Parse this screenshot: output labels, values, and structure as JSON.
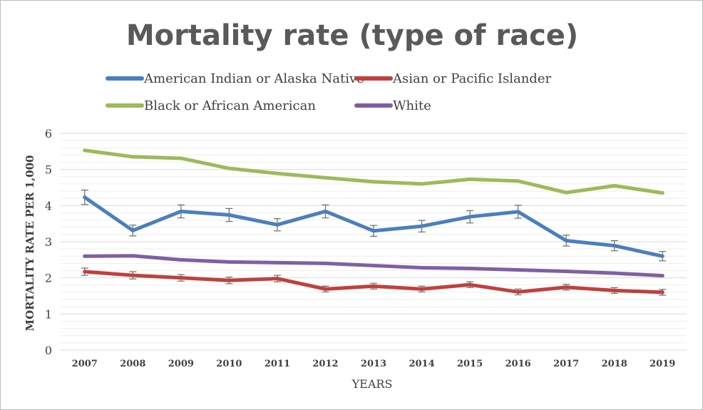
{
  "chart_data": {
    "type": "line",
    "title": "Mortality rate (type of race)",
    "xlabel": "YEARS",
    "ylabel": "MORTALITY RATE PER 1,000",
    "ylim": [
      0,
      6
    ],
    "yticks": [
      "0",
      "1",
      "2",
      "3",
      "4",
      "5",
      "6"
    ],
    "grid": true,
    "legend_position": "top",
    "categories": [
      "2007",
      "2008",
      "2009",
      "2010",
      "2011",
      "2012",
      "2013",
      "2014",
      "2015",
      "2016",
      "2017",
      "2018",
      "2019"
    ],
    "series": [
      {
        "name": "American Indian or Alaska Native",
        "color": "#4a7fc0",
        "values": [
          4.23,
          3.31,
          3.84,
          3.74,
          3.47,
          3.84,
          3.3,
          3.43,
          3.69,
          3.83,
          3.03,
          2.89,
          2.6
        ],
        "error": [
          0.2,
          0.15,
          0.18,
          0.18,
          0.17,
          0.18,
          0.15,
          0.16,
          0.17,
          0.18,
          0.15,
          0.14,
          0.13
        ]
      },
      {
        "name": "Asian or Pacific Islander",
        "color": "#c0403d",
        "values": [
          2.17,
          2.07,
          2.0,
          1.93,
          1.98,
          1.69,
          1.77,
          1.69,
          1.81,
          1.61,
          1.74,
          1.65,
          1.6
        ],
        "error": [
          0.1,
          0.1,
          0.09,
          0.09,
          0.09,
          0.08,
          0.08,
          0.08,
          0.08,
          0.08,
          0.08,
          0.08,
          0.08
        ]
      },
      {
        "name": "Black or African American",
        "color": "#9bbb59",
        "values": [
          5.53,
          5.35,
          5.31,
          5.03,
          4.89,
          4.77,
          4.66,
          4.6,
          4.73,
          4.68,
          4.36,
          4.55,
          4.35
        ],
        "error": []
      },
      {
        "name": "White",
        "color": "#7f5fa4",
        "values": [
          2.6,
          2.61,
          2.5,
          2.44,
          2.42,
          2.4,
          2.34,
          2.28,
          2.26,
          2.22,
          2.18,
          2.13,
          2.06
        ],
        "error": []
      }
    ]
  }
}
